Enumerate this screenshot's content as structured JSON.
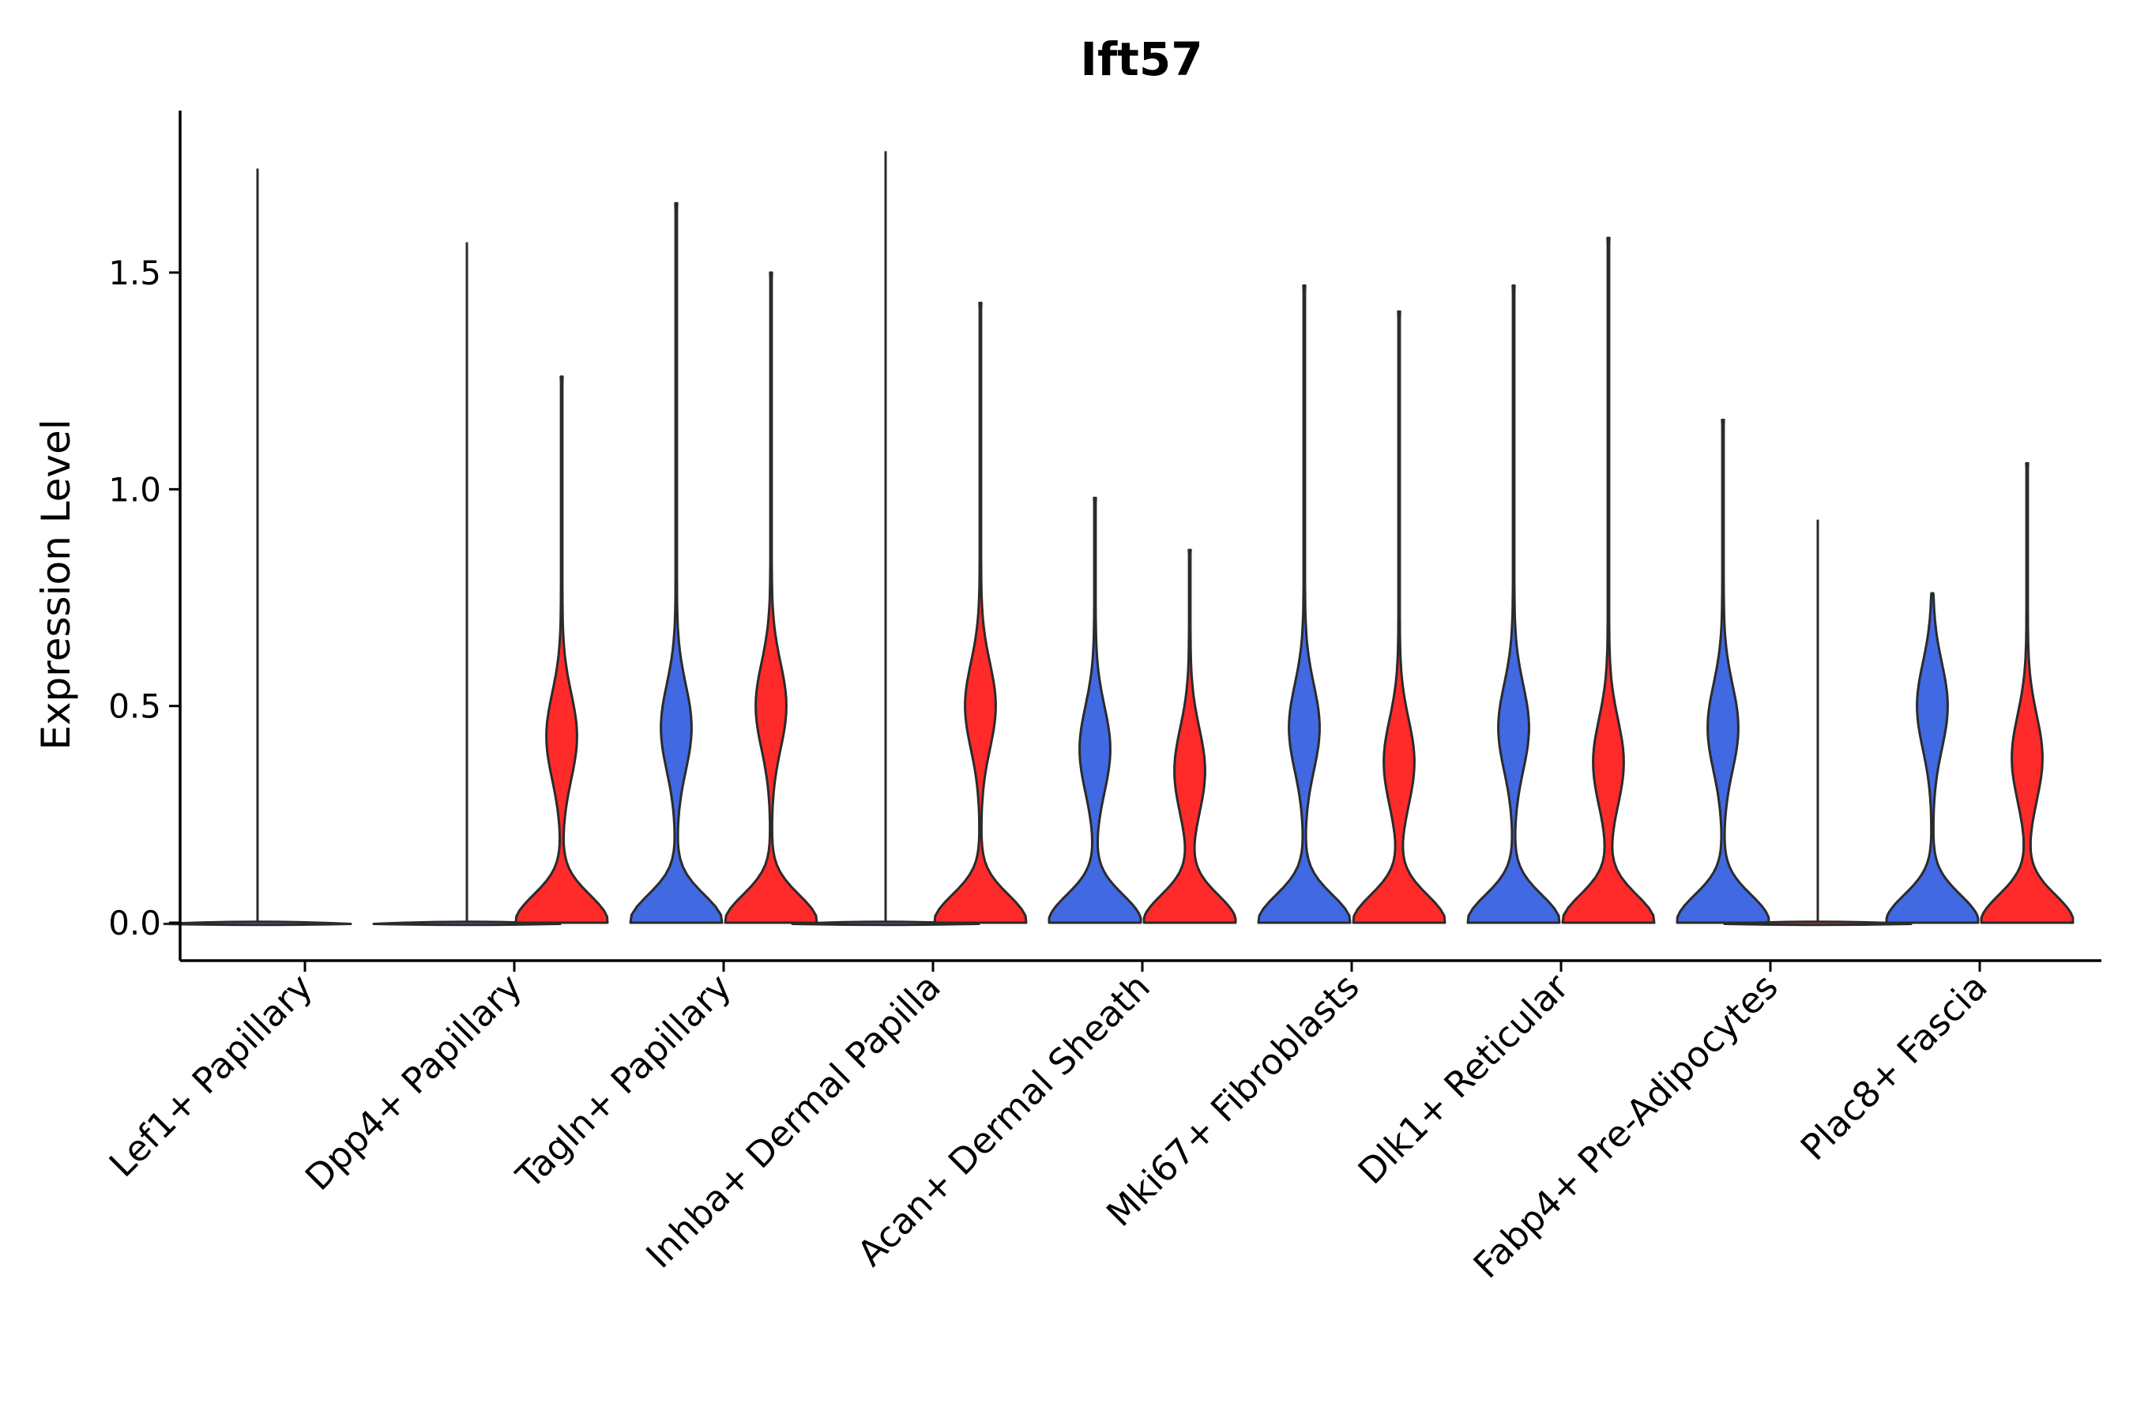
{
  "chart_data": {
    "type": "violin",
    "title": "Ift57",
    "xlabel": "",
    "ylabel": "Expression Level",
    "ylim": [
      -0.09,
      1.87
    ],
    "yticks": [
      0.0,
      0.5,
      1.0,
      1.5
    ],
    "ytick_labels": [
      "0.0",
      "0.5",
      "1.0",
      "1.5"
    ],
    "grid": false,
    "legend": "none",
    "groups": [
      {
        "name": "blue",
        "color": "#4169E1"
      },
      {
        "name": "red",
        "color": "#FF2B2B"
      }
    ],
    "categories": [
      "Lef1+ Papillary",
      "Dpp4+ Papillary",
      "Tagln+ Papillary",
      "Inhba+ Dermal Papilla",
      "Acan+ Dermal Sheath",
      "Mki67+ Fibroblasts",
      "Dlk1+ Reticular",
      "Fabp4+ Pre-Adipocytes",
      "Plac8+ Fascia"
    ],
    "series": [
      {
        "name": "blue",
        "color": "#4169E1",
        "max_values": [
          1.74,
          1.57,
          1.66,
          1.78,
          0.98,
          1.47,
          1.47,
          1.16,
          0.76
        ],
        "mode_values": [
          0.0,
          0.0,
          0.45,
          0.0,
          0.4,
          0.45,
          0.45,
          0.45,
          0.5
        ],
        "shape": [
          "flat",
          "flat",
          "violin",
          "flat",
          "violin",
          "violin",
          "violin",
          "violin",
          "violin"
        ]
      },
      {
        "name": "red",
        "color": "#FF2B2B",
        "max_values": [
          null,
          1.26,
          1.5,
          1.43,
          0.86,
          1.41,
          1.58,
          0.93,
          1.06
        ],
        "mode_values": [
          null,
          0.43,
          0.5,
          0.5,
          0.35,
          0.37,
          0.37,
          0.0,
          0.38
        ],
        "shape": [
          "none",
          "violin",
          "violin",
          "violin",
          "violin",
          "violin",
          "violin",
          "flat",
          "violin"
        ]
      }
    ]
  }
}
